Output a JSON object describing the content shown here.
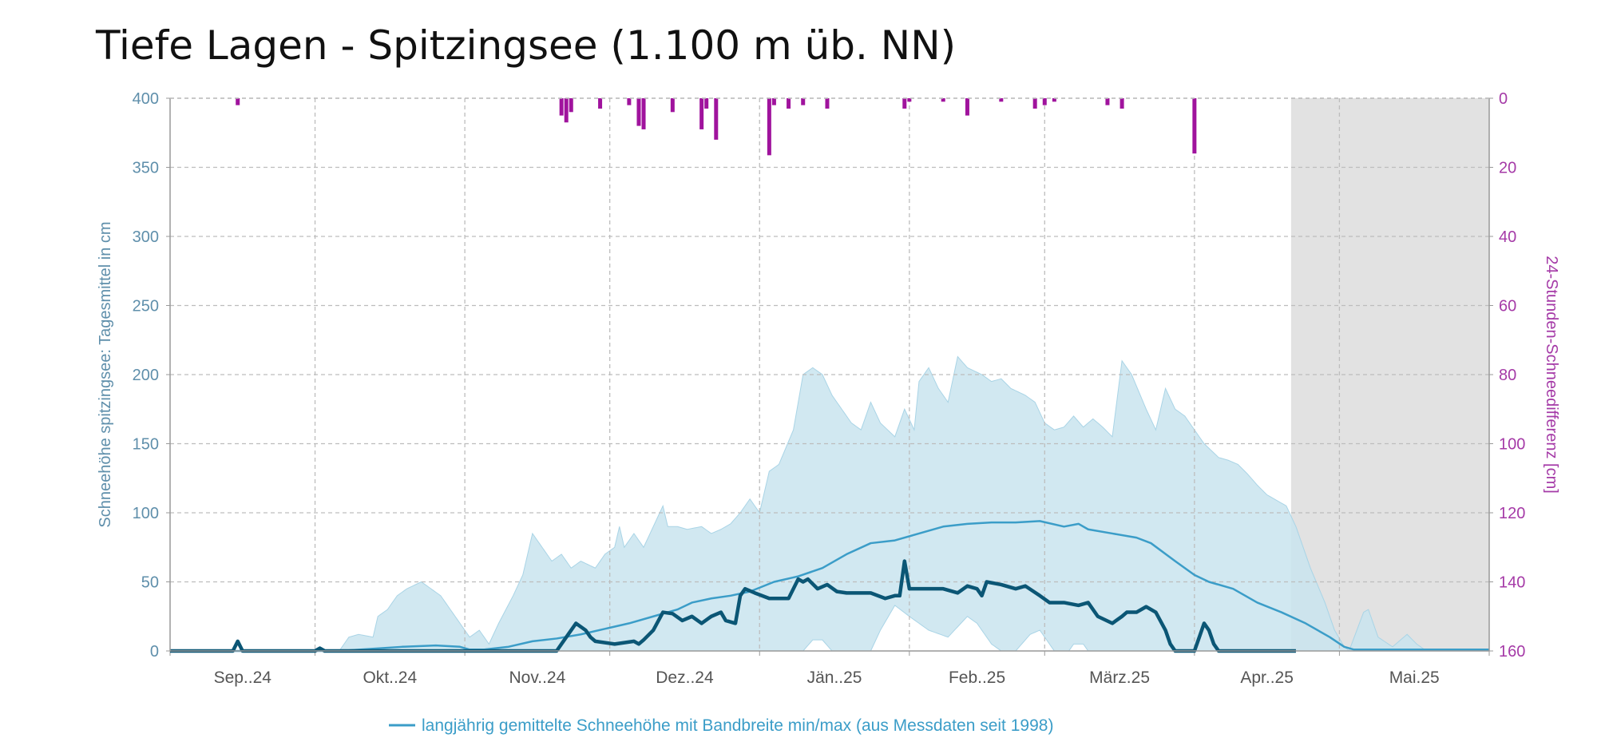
{
  "title": "Tiefe Lagen - Spitzingsee (1.100 m üb. NN)",
  "chart_data": {
    "type": "area",
    "title": "Tiefe Lagen - Spitzingsee (1.100 m üb. NN)",
    "ylabel": "Schneehöhe spitzingsee: Tagesmittel in cm",
    "y2label": "24-Stunden-Schneedifferenz [cm]",
    "ylim": [
      0,
      400
    ],
    "y2lim": [
      0,
      160
    ],
    "y2_inverted": true,
    "yticks": [
      "0",
      "50",
      "100",
      "150",
      "200",
      "250",
      "300",
      "350",
      "400"
    ],
    "y2ticks": [
      "0",
      "20",
      "40",
      "60",
      "80",
      "100",
      "120",
      "140",
      "160"
    ],
    "x_unit": "days since 1 Sep 2024",
    "xlim": [
      0,
      273
    ],
    "month_starts": [
      0,
      30,
      61,
      91,
      122,
      153,
      181,
      212,
      242,
      273
    ],
    "xticks": [
      "Sep..24",
      "Okt..24",
      "Nov..24",
      "Dez..24",
      "Jän..25",
      "Feb..25",
      "März.25",
      "Apr..25",
      "Mai.25"
    ],
    "forecast_shade_from": 232,
    "legend": "langjährig gemittelte Schneehöhe mit Bandbreite min/max (aus Messdaten seit 1998)",
    "legend_position": "bottom",
    "colors": {
      "band": "#c9e4ef",
      "band_edge": "#a9d4e6",
      "mean": "#3b9dc8",
      "current": "#0b5675",
      "bars": "#a0139d",
      "shade": "#e2e2e2",
      "grid": "#bdbdbd"
    },
    "series": [
      {
        "name": "max",
        "points": [
          [
            0,
            0
          ],
          [
            35,
            0
          ],
          [
            37,
            10
          ],
          [
            39,
            12
          ],
          [
            42,
            10
          ],
          [
            43,
            25
          ],
          [
            45,
            30
          ],
          [
            47,
            40
          ],
          [
            49,
            45
          ],
          [
            52,
            50
          ],
          [
            54,
            45
          ],
          [
            56,
            40
          ],
          [
            58,
            30
          ],
          [
            60,
            20
          ],
          [
            62,
            10
          ],
          [
            64,
            15
          ],
          [
            66,
            5
          ],
          [
            68,
            20
          ],
          [
            71,
            40
          ],
          [
            73,
            55
          ],
          [
            75,
            85
          ],
          [
            77,
            75
          ],
          [
            79,
            65
          ],
          [
            81,
            70
          ],
          [
            83,
            60
          ],
          [
            85,
            65
          ],
          [
            88,
            60
          ],
          [
            90,
            70
          ],
          [
            92,
            75
          ],
          [
            93,
            90
          ],
          [
            94,
            75
          ],
          [
            96,
            85
          ],
          [
            98,
            75
          ],
          [
            100,
            90
          ],
          [
            102,
            105
          ],
          [
            103,
            90
          ],
          [
            105,
            90
          ],
          [
            107,
            88
          ],
          [
            110,
            90
          ],
          [
            112,
            85
          ],
          [
            114,
            88
          ],
          [
            116,
            92
          ],
          [
            118,
            100
          ],
          [
            120,
            110
          ],
          [
            122,
            100
          ],
          [
            124,
            130
          ],
          [
            126,
            135
          ],
          [
            129,
            160
          ],
          [
            131,
            200
          ],
          [
            133,
            205
          ],
          [
            135,
            200
          ],
          [
            137,
            185
          ],
          [
            139,
            175
          ],
          [
            141,
            165
          ],
          [
            143,
            160
          ],
          [
            145,
            180
          ],
          [
            147,
            165
          ],
          [
            150,
            155
          ],
          [
            152,
            175
          ],
          [
            154,
            160
          ],
          [
            155,
            195
          ],
          [
            157,
            205
          ],
          [
            159,
            190
          ],
          [
            161,
            180
          ],
          [
            163,
            213
          ],
          [
            165,
            205
          ],
          [
            168,
            200
          ],
          [
            170,
            195
          ],
          [
            172,
            197
          ],
          [
            174,
            190
          ],
          [
            177,
            185
          ],
          [
            179,
            180
          ],
          [
            181,
            165
          ],
          [
            183,
            160
          ],
          [
            185,
            162
          ],
          [
            187,
            170
          ],
          [
            189,
            162
          ],
          [
            191,
            168
          ],
          [
            193,
            162
          ],
          [
            195,
            155
          ],
          [
            197,
            210
          ],
          [
            199,
            200
          ],
          [
            202,
            175
          ],
          [
            204,
            160
          ],
          [
            206,
            190
          ],
          [
            208,
            175
          ],
          [
            210,
            170
          ],
          [
            212,
            160
          ],
          [
            214,
            150
          ],
          [
            217,
            140
          ],
          [
            219,
            138
          ],
          [
            221,
            135
          ],
          [
            223,
            128
          ],
          [
            225,
            120
          ],
          [
            227,
            113
          ],
          [
            231,
            105
          ],
          [
            233,
            90
          ],
          [
            236,
            60
          ],
          [
            239,
            35
          ],
          [
            241,
            15
          ],
          [
            243,
            3
          ],
          [
            244,
            0
          ],
          [
            247,
            28
          ],
          [
            248,
            30
          ],
          [
            250,
            10
          ],
          [
            253,
            3
          ],
          [
            256,
            12
          ],
          [
            258,
            5
          ],
          [
            260,
            0
          ],
          [
            273,
            0
          ]
        ]
      },
      {
        "name": "min",
        "points": [
          [
            0,
            0
          ],
          [
            131,
            0
          ],
          [
            133,
            8
          ],
          [
            135,
            8
          ],
          [
            137,
            0
          ],
          [
            145,
            0
          ],
          [
            147,
            15
          ],
          [
            150,
            33
          ],
          [
            153,
            25
          ],
          [
            157,
            15
          ],
          [
            161,
            10
          ],
          [
            165,
            25
          ],
          [
            167,
            20
          ],
          [
            170,
            5
          ],
          [
            172,
            0
          ],
          [
            175,
            0
          ],
          [
            178,
            12
          ],
          [
            180,
            15
          ],
          [
            183,
            0
          ],
          [
            186,
            0
          ],
          [
            187,
            5
          ],
          [
            189,
            5
          ],
          [
            190,
            0
          ],
          [
            273,
            0
          ]
        ]
      },
      {
        "name": "mean",
        "points": [
          [
            0,
            0
          ],
          [
            35,
            0
          ],
          [
            48,
            3
          ],
          [
            55,
            4
          ],
          [
            60,
            3
          ],
          [
            62,
            1
          ],
          [
            65,
            1
          ],
          [
            70,
            3
          ],
          [
            75,
            7
          ],
          [
            80,
            9
          ],
          [
            85,
            12
          ],
          [
            90,
            16
          ],
          [
            95,
            20
          ],
          [
            100,
            25
          ],
          [
            105,
            30
          ],
          [
            108,
            35
          ],
          [
            112,
            38
          ],
          [
            116,
            40
          ],
          [
            120,
            43
          ],
          [
            125,
            50
          ],
          [
            130,
            54
          ],
          [
            135,
            60
          ],
          [
            140,
            70
          ],
          [
            145,
            78
          ],
          [
            150,
            80
          ],
          [
            155,
            85
          ],
          [
            160,
            90
          ],
          [
            165,
            92
          ],
          [
            170,
            93
          ],
          [
            175,
            93
          ],
          [
            180,
            94
          ],
          [
            185,
            90
          ],
          [
            188,
            92
          ],
          [
            190,
            88
          ],
          [
            195,
            85
          ],
          [
            200,
            82
          ],
          [
            203,
            78
          ],
          [
            208,
            65
          ],
          [
            212,
            55
          ],
          [
            215,
            50
          ],
          [
            220,
            45
          ],
          [
            225,
            35
          ],
          [
            230,
            28
          ],
          [
            235,
            20
          ],
          [
            240,
            10
          ],
          [
            243,
            3
          ],
          [
            245,
            1
          ],
          [
            273,
            1
          ]
        ]
      },
      {
        "name": "current",
        "points": [
          [
            0,
            0
          ],
          [
            13,
            0
          ],
          [
            14,
            7
          ],
          [
            15,
            0
          ],
          [
            30,
            0
          ],
          [
            31,
            2
          ],
          [
            32,
            0
          ],
          [
            80,
            0
          ],
          [
            81,
            5
          ],
          [
            83,
            15
          ],
          [
            84,
            20
          ],
          [
            86,
            15
          ],
          [
            87,
            10
          ],
          [
            88,
            7
          ],
          [
            92,
            5
          ],
          [
            96,
            7
          ],
          [
            97,
            5
          ],
          [
            98,
            8
          ],
          [
            100,
            15
          ],
          [
            102,
            28
          ],
          [
            104,
            27
          ],
          [
            106,
            22
          ],
          [
            108,
            25
          ],
          [
            110,
            20
          ],
          [
            112,
            25
          ],
          [
            114,
            28
          ],
          [
            115,
            22
          ],
          [
            117,
            20
          ],
          [
            118,
            40
          ],
          [
            119,
            45
          ],
          [
            121,
            42
          ],
          [
            124,
            38
          ],
          [
            128,
            38
          ],
          [
            130,
            52
          ],
          [
            131,
            50
          ],
          [
            132,
            52
          ],
          [
            134,
            45
          ],
          [
            136,
            48
          ],
          [
            138,
            43
          ],
          [
            140,
            42
          ],
          [
            145,
            42
          ],
          [
            148,
            38
          ],
          [
            150,
            40
          ],
          [
            151,
            40
          ],
          [
            152,
            65
          ],
          [
            153,
            45
          ],
          [
            155,
            45
          ],
          [
            160,
            45
          ],
          [
            163,
            42
          ],
          [
            165,
            47
          ],
          [
            167,
            45
          ],
          [
            168,
            40
          ],
          [
            169,
            50
          ],
          [
            172,
            48
          ],
          [
            175,
            45
          ],
          [
            177,
            47
          ],
          [
            180,
            40
          ],
          [
            182,
            35
          ],
          [
            185,
            35
          ],
          [
            188,
            33
          ],
          [
            190,
            35
          ],
          [
            192,
            25
          ],
          [
            195,
            20
          ],
          [
            197,
            25
          ],
          [
            198,
            28
          ],
          [
            200,
            28
          ],
          [
            202,
            32
          ],
          [
            204,
            28
          ],
          [
            206,
            15
          ],
          [
            207,
            5
          ],
          [
            208,
            0
          ],
          [
            212,
            0
          ],
          [
            213,
            10
          ],
          [
            214,
            20
          ],
          [
            215,
            15
          ],
          [
            216,
            5
          ],
          [
            217,
            0
          ],
          [
            233,
            0
          ]
        ]
      }
    ],
    "bars": {
      "name": "24-Stunden-Schneedifferenz",
      "points": [
        [
          14,
          2
        ],
        [
          81,
          5
        ],
        [
          82,
          7
        ],
        [
          83,
          4
        ],
        [
          89,
          3
        ],
        [
          95,
          2
        ],
        [
          97,
          8
        ],
        [
          98,
          9
        ],
        [
          104,
          4
        ],
        [
          110,
          9
        ],
        [
          111,
          3
        ],
        [
          113,
          12
        ],
        [
          124,
          16.5
        ],
        [
          125,
          2
        ],
        [
          128,
          3
        ],
        [
          131,
          2
        ],
        [
          136,
          3
        ],
        [
          152,
          3
        ],
        [
          153,
          1
        ],
        [
          160,
          1
        ],
        [
          165,
          5
        ],
        [
          172,
          1
        ],
        [
          179,
          3
        ],
        [
          181,
          2
        ],
        [
          183,
          1
        ],
        [
          194,
          2
        ],
        [
          197,
          3
        ],
        [
          212,
          16
        ]
      ]
    }
  }
}
